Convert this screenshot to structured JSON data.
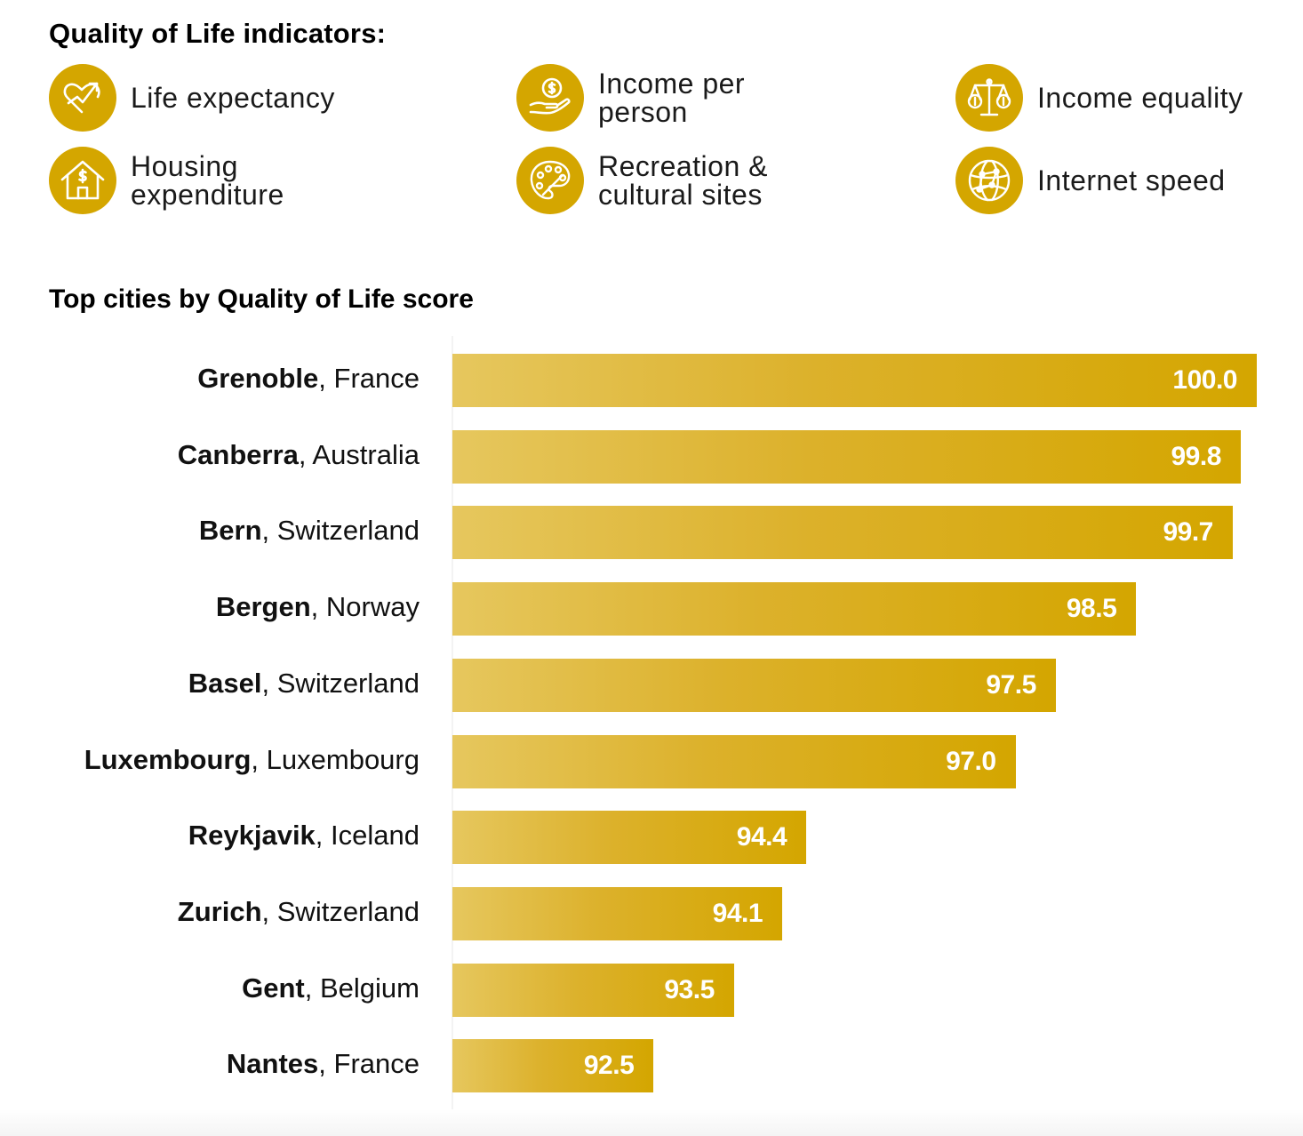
{
  "header": {
    "title": "Quality of Life indicators:"
  },
  "indicators": [
    {
      "label": "Life expectancy",
      "icon": "heart-arrow-icon"
    },
    {
      "label": "Income per person",
      "icon": "hand-coin-icon"
    },
    {
      "label": "Income equality",
      "icon": "balance-scale-icon"
    },
    {
      "label": "Housing expenditure",
      "icon": "house-dollar-icon"
    },
    {
      "label": "Recreation & cultural sites",
      "icon": "paint-palette-icon"
    },
    {
      "label": "Internet speed",
      "icon": "network-globe-icon"
    }
  ],
  "colors": {
    "accent": "#d4a600",
    "accent_light": "#e6c75e",
    "text": "#000000"
  },
  "chart_data": {
    "type": "bar",
    "orientation": "horizontal",
    "title": "Top cities by Quality of Life score",
    "categories": [
      {
        "city": "Grenoble",
        "country": "France"
      },
      {
        "city": "Canberra",
        "country": "Australia"
      },
      {
        "city": "Bern",
        "country": "Switzerland"
      },
      {
        "city": "Bergen",
        "country": "Norway"
      },
      {
        "city": "Basel",
        "country": "Switzerland"
      },
      {
        "city": "Luxembourg",
        "country": "Luxembourg"
      },
      {
        "city": "Reykjavik",
        "country": "Iceland"
      },
      {
        "city": "Zurich",
        "country": "Switzerland"
      },
      {
        "city": "Gent",
        "country": "Belgium"
      },
      {
        "city": "Nantes",
        "country": "France"
      }
    ],
    "values": [
      100.0,
      99.8,
      99.7,
      98.5,
      97.5,
      97.0,
      94.4,
      94.1,
      93.5,
      92.5
    ],
    "value_labels": [
      "100.0",
      "99.8",
      "99.7",
      "98.5",
      "97.5",
      "97.0",
      "94.4",
      "94.1",
      "93.5",
      "92.5"
    ],
    "xlim": [
      90.0,
      100.0
    ],
    "grid": false,
    "legend": "none"
  }
}
